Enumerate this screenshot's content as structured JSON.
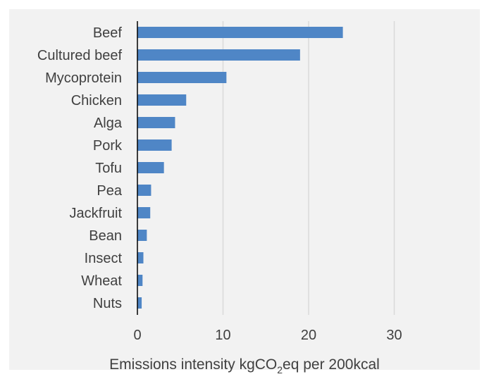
{
  "colors": {
    "bar": "#4f86c6",
    "panel_background": "#f2f2f2",
    "gridline": "#d9d9d9",
    "axis": "#000000",
    "text": "#404040"
  },
  "chart_data": {
    "type": "bar",
    "orientation": "horizontal",
    "categories": [
      "Beef",
      "Cultured beef",
      "Mycoprotein",
      "Chicken",
      "Alga",
      "Pork",
      "Tofu",
      "Pea",
      "Jackfruit",
      "Bean",
      "Insect",
      "Wheat",
      "Nuts"
    ],
    "values": [
      24,
      19,
      10.4,
      5.7,
      4.4,
      4.0,
      3.1,
      1.6,
      1.5,
      1.1,
      0.7,
      0.6,
      0.5
    ],
    "xlabel": {
      "prefix": "Emissions intensity kgCO",
      "subscript": "2",
      "suffix": "eq per 200kcal"
    },
    "xlim": [
      0,
      36
    ],
    "xticks": [
      "0",
      "10",
      "20",
      "30"
    ],
    "grid": "vertical",
    "legend": "none"
  }
}
